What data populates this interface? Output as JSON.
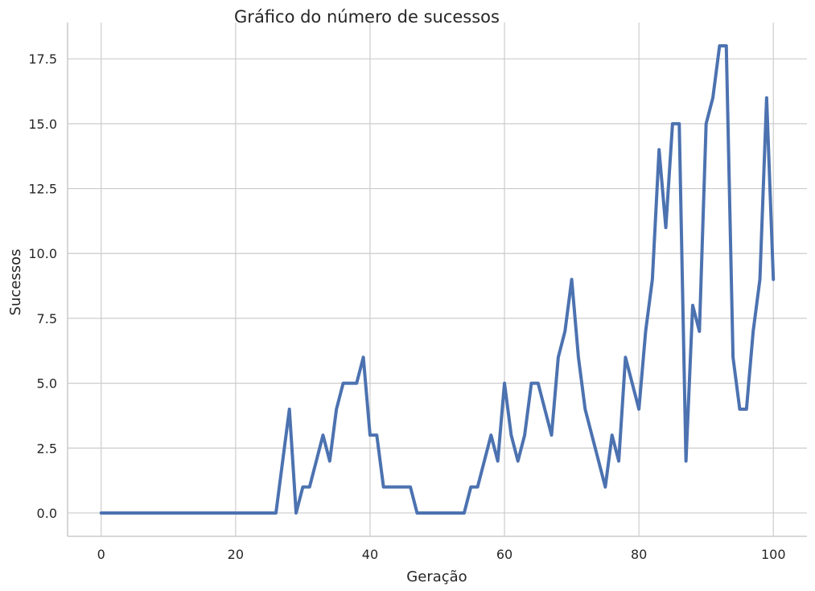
{
  "chart_data": {
    "type": "line",
    "title": "Gráfico do número de sucessos",
    "xlabel": "Geração",
    "ylabel": "Sucessos",
    "xlim": [
      -5,
      105
    ],
    "ylim": [
      -0.9,
      18.9
    ],
    "xticks": [
      0,
      20,
      40,
      60,
      80,
      100
    ],
    "yticks": [
      0.0,
      2.5,
      5.0,
      7.5,
      10.0,
      12.5,
      15.0,
      17.5
    ],
    "xtick_labels": [
      "0",
      "20",
      "40",
      "60",
      "80",
      "100"
    ],
    "ytick_labels": [
      "0.0",
      "2.5",
      "5.0",
      "7.5",
      "10.0",
      "12.5",
      "15.0",
      "17.5"
    ],
    "grid": true,
    "color": "#4c72b0",
    "x": [
      0,
      1,
      2,
      3,
      4,
      5,
      6,
      7,
      8,
      9,
      10,
      11,
      12,
      13,
      14,
      15,
      16,
      17,
      18,
      19,
      20,
      21,
      22,
      23,
      24,
      25,
      26,
      27,
      28,
      29,
      30,
      31,
      32,
      33,
      34,
      35,
      36,
      37,
      38,
      39,
      40,
      41,
      42,
      43,
      44,
      45,
      46,
      47,
      48,
      49,
      50,
      51,
      52,
      53,
      54,
      55,
      56,
      57,
      58,
      59,
      60,
      61,
      62,
      63,
      64,
      65,
      66,
      67,
      68,
      69,
      70,
      71,
      72,
      73,
      74,
      75,
      76,
      77,
      78,
      79,
      80,
      81,
      82,
      83,
      84,
      85,
      86,
      87,
      88,
      89,
      90,
      91,
      92,
      93,
      94,
      95,
      96,
      97,
      98,
      99,
      100
    ],
    "y": [
      0,
      0,
      0,
      0,
      0,
      0,
      0,
      0,
      0,
      0,
      0,
      0,
      0,
      0,
      0,
      0,
      0,
      0,
      0,
      0,
      0,
      0,
      0,
      0,
      0,
      0,
      0,
      2,
      4,
      0,
      1,
      1,
      2,
      3,
      2,
      4,
      5,
      5,
      5,
      6,
      3,
      3,
      1,
      1,
      1,
      1,
      1,
      0,
      0,
      0,
      0,
      0,
      0,
      0,
      0,
      1,
      1,
      2,
      3,
      2,
      5,
      3,
      2,
      3,
      5,
      5,
      4,
      3,
      6,
      7,
      9,
      6,
      4,
      3,
      2,
      1,
      3,
      2,
      6,
      5,
      4,
      7,
      9,
      14,
      11,
      15,
      15,
      2,
      8,
      7,
      15,
      16,
      18,
      18,
      6,
      4,
      4,
      7,
      9,
      16,
      9
    ]
  }
}
